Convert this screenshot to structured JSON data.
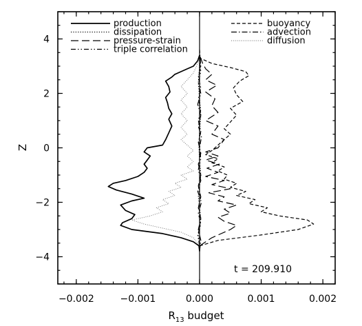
{
  "chart_data": {
    "type": "line",
    "title": "",
    "xlabel": "R13 budget",
    "xlabel_parts": {
      "main": "R",
      "sub": "13",
      "rest": " budget"
    },
    "ylabel": "Z",
    "xlim": [
      -0.0023,
      0.0022
    ],
    "ylim": [
      -5,
      5
    ],
    "xticks": [
      -0.002,
      -0.001,
      0.0,
      0.001,
      0.002
    ],
    "xtick_labels": [
      "−0.002",
      "−0.001",
      "0.000",
      "0.001",
      "0.002"
    ],
    "yticks": [
      -4,
      -2,
      0,
      2,
      4
    ],
    "ytick_labels": [
      "−4",
      "−2",
      "0",
      "2",
      "4"
    ],
    "grid": false,
    "legend_placement": "top",
    "annotation": "t = 209.910",
    "series": [
      {
        "name": "production",
        "dash": "solid",
        "points": [
          [
            0.0,
            -3.8
          ],
          [
            -1e-05,
            -3.6
          ],
          [
            -0.0001,
            -3.45
          ],
          [
            -0.0003,
            -3.3
          ],
          [
            -0.0006,
            -3.15
          ],
          [
            -0.0011,
            -3.0
          ],
          [
            -0.00128,
            -2.85
          ],
          [
            -0.00125,
            -2.75
          ],
          [
            -0.0011,
            -2.6
          ],
          [
            -0.00105,
            -2.45
          ],
          [
            -0.0012,
            -2.3
          ],
          [
            -0.00128,
            -2.1
          ],
          [
            -0.0011,
            -1.95
          ],
          [
            -0.0009,
            -1.85
          ],
          [
            -0.0011,
            -1.7
          ],
          [
            -0.00135,
            -1.55
          ],
          [
            -0.00148,
            -1.42
          ],
          [
            -0.0014,
            -1.3
          ],
          [
            -0.0012,
            -1.2
          ],
          [
            -0.001,
            -1.05
          ],
          [
            -0.0009,
            -0.9
          ],
          [
            -0.00085,
            -0.75
          ],
          [
            -0.0009,
            -0.6
          ],
          [
            -0.00085,
            -0.45
          ],
          [
            -0.0008,
            -0.3
          ],
          [
            -0.0009,
            -0.15
          ],
          [
            -0.00085,
            0.0
          ],
          [
            -0.0006,
            0.1
          ],
          [
            -0.00055,
            0.3
          ],
          [
            -0.0005,
            0.55
          ],
          [
            -0.00045,
            0.8
          ],
          [
            -0.0005,
            1.05
          ],
          [
            -0.00045,
            1.25
          ],
          [
            -0.0005,
            1.45
          ],
          [
            -0.00052,
            1.65
          ],
          [
            -0.00055,
            1.85
          ],
          [
            -0.00048,
            2.05
          ],
          [
            -0.0005,
            2.25
          ],
          [
            -0.00055,
            2.45
          ],
          [
            -0.00045,
            2.6
          ],
          [
            -0.0004,
            2.7
          ],
          [
            -0.0003,
            2.8
          ],
          [
            -0.0002,
            2.9
          ],
          [
            -0.0001,
            3.0
          ],
          [
            -3e-05,
            3.2
          ],
          [
            0.0,
            3.4
          ]
        ]
      },
      {
        "name": "dissipation",
        "dash": "dotted",
        "points": [
          [
            0.0,
            -3.5
          ],
          [
            -2e-05,
            -3.2
          ],
          [
            0.0,
            -3.0
          ],
          [
            2e-05,
            -2.6
          ],
          [
            0.0,
            -2.2
          ],
          [
            -2e-05,
            -1.8
          ],
          [
            0.0,
            -1.4
          ],
          [
            2e-05,
            -1.0
          ],
          [
            0.0,
            -0.5
          ],
          [
            -1e-05,
            0.0
          ],
          [
            0.0,
            0.6
          ],
          [
            2e-05,
            1.2
          ],
          [
            0.0,
            1.8
          ],
          [
            -2e-05,
            2.4
          ],
          [
            0.0,
            3.0
          ],
          [
            0.0,
            3.4
          ]
        ]
      },
      {
        "name": "pressure-strain",
        "dash": "long-dash",
        "points": [
          [
            0.0,
            -3.6
          ],
          [
            0.0002,
            -3.3
          ],
          [
            0.0005,
            -3.0
          ],
          [
            0.0006,
            -2.85
          ],
          [
            0.0004,
            -2.7
          ],
          [
            0.0003,
            -2.55
          ],
          [
            0.0005,
            -2.4
          ],
          [
            0.0004,
            -2.25
          ],
          [
            0.0006,
            -2.1
          ],
          [
            0.0003,
            -1.95
          ],
          [
            0.0004,
            -1.8
          ],
          [
            0.00015,
            -1.65
          ],
          [
            0.0005,
            -1.5
          ],
          [
            0.0002,
            -1.35
          ],
          [
            0.0004,
            -1.2
          ],
          [
            0.0001,
            -1.05
          ],
          [
            0.0003,
            -0.9
          ],
          [
            0.00012,
            -0.75
          ],
          [
            0.00032,
            -0.6
          ],
          [
            0.0001,
            -0.45
          ],
          [
            0.0003,
            -0.3
          ],
          [
            0.0001,
            -0.15
          ],
          [
            0.0003,
            0.0
          ],
          [
            0.0004,
            0.3
          ],
          [
            0.0002,
            0.5
          ],
          [
            0.0003,
            0.8
          ],
          [
            0.0001,
            1.0
          ],
          [
            0.0003,
            1.3
          ],
          [
            0.0002,
            1.55
          ],
          [
            0.00025,
            1.8
          ],
          [
            0.0001,
            2.05
          ],
          [
            0.00028,
            2.3
          ],
          [
            0.0001,
            2.5
          ],
          [
            0.0002,
            2.7
          ],
          [
            0.0001,
            2.9
          ],
          [
            5e-05,
            3.1
          ],
          [
            0.0,
            3.4
          ]
        ]
      },
      {
        "name": "triple correlation",
        "dash": "dash-dot-dot",
        "points": [
          [
            0.0,
            -3.6
          ],
          [
            -3e-05,
            -3.2
          ],
          [
            2e-05,
            -2.8
          ],
          [
            -2e-05,
            -2.4
          ],
          [
            3e-05,
            -2.0
          ],
          [
            -3e-05,
            -1.6
          ],
          [
            2e-05,
            -1.2
          ],
          [
            -2e-05,
            -0.8
          ],
          [
            2e-05,
            -0.4
          ],
          [
            0.0,
            0.0
          ],
          [
            3e-05,
            0.4
          ],
          [
            -2e-05,
            0.8
          ],
          [
            2e-05,
            1.2
          ],
          [
            -3e-05,
            1.6
          ],
          [
            2e-05,
            2.0
          ],
          [
            -2e-05,
            2.4
          ],
          [
            2e-05,
            2.8
          ],
          [
            0.0,
            3.2
          ],
          [
            0.0,
            3.4
          ]
        ]
      },
      {
        "name": "buoyancy",
        "dash": "short-dash",
        "points": [
          [
            0.0,
            -3.6
          ],
          [
            0.0003,
            -3.4
          ],
          [
            0.001,
            -3.2
          ],
          [
            0.0016,
            -3.0
          ],
          [
            0.00185,
            -2.8
          ],
          [
            0.00175,
            -2.65
          ],
          [
            0.0013,
            -2.5
          ],
          [
            0.001,
            -2.35
          ],
          [
            0.0011,
            -2.2
          ],
          [
            0.0008,
            -2.05
          ],
          [
            0.0009,
            -1.9
          ],
          [
            0.0006,
            -1.75
          ],
          [
            0.00075,
            -1.6
          ],
          [
            0.0005,
            -1.45
          ],
          [
            0.0006,
            -1.3
          ],
          [
            0.0004,
            -1.15
          ],
          [
            0.00045,
            -1.0
          ],
          [
            0.0003,
            -0.85
          ],
          [
            0.0004,
            -0.7
          ],
          [
            0.0002,
            -0.55
          ],
          [
            0.0003,
            -0.4
          ],
          [
            0.0001,
            -0.25
          ],
          [
            0.0002,
            -0.1
          ],
          [
            0.0003,
            0.1
          ],
          [
            0.0004,
            0.3
          ],
          [
            0.0005,
            0.5
          ],
          [
            0.0004,
            0.7
          ],
          [
            0.0005,
            0.95
          ],
          [
            0.0006,
            1.2
          ],
          [
            0.0005,
            1.45
          ],
          [
            0.0007,
            1.7
          ],
          [
            0.0006,
            1.95
          ],
          [
            0.00055,
            2.2
          ],
          [
            0.00065,
            2.45
          ],
          [
            0.0008,
            2.65
          ],
          [
            0.00075,
            2.8
          ],
          [
            0.0005,
            2.95
          ],
          [
            0.0002,
            3.1
          ],
          [
            0.0,
            3.3
          ]
        ]
      },
      {
        "name": "advection",
        "dash": "dash-dot",
        "points": [
          [
            0.0,
            -3.8
          ],
          [
            2e-05,
            -3.4
          ],
          [
            -2e-05,
            -3.0
          ],
          [
            2e-05,
            -2.6
          ],
          [
            -2e-05,
            -2.2
          ],
          [
            2e-05,
            -1.8
          ],
          [
            -2e-05,
            -1.4
          ],
          [
            2e-05,
            -1.0
          ],
          [
            -2e-05,
            -0.6
          ],
          [
            2e-05,
            -0.2
          ],
          [
            -2e-05,
            0.2
          ],
          [
            2e-05,
            0.6
          ],
          [
            -2e-05,
            1.0
          ],
          [
            2e-05,
            1.4
          ],
          [
            -2e-05,
            1.8
          ],
          [
            2e-05,
            2.2
          ],
          [
            -2e-05,
            2.6
          ],
          [
            2e-05,
            3.0
          ],
          [
            0.0,
            3.6
          ]
        ]
      },
      {
        "name": "diffusion",
        "dash": "fine-dot",
        "points": [
          [
            0.0,
            -3.6
          ],
          [
            -0.0001,
            -3.3
          ],
          [
            -0.0003,
            -3.1
          ],
          [
            -0.0006,
            -2.95
          ],
          [
            -0.0009,
            -2.8
          ],
          [
            -0.0011,
            -2.65
          ],
          [
            -0.0008,
            -2.5
          ],
          [
            -0.0006,
            -2.35
          ],
          [
            -0.0007,
            -2.2
          ],
          [
            -0.0005,
            -2.05
          ],
          [
            -0.0006,
            -1.9
          ],
          [
            -0.0004,
            -1.75
          ],
          [
            -0.0005,
            -1.6
          ],
          [
            -0.0003,
            -1.45
          ],
          [
            -0.0004,
            -1.3
          ],
          [
            -0.0002,
            -1.15
          ],
          [
            -0.0003,
            -1.0
          ],
          [
            -0.0001,
            -0.85
          ],
          [
            -0.0002,
            -0.7
          ],
          [
            -0.0001,
            -0.5
          ],
          [
            -0.0002,
            -0.3
          ],
          [
            -0.0001,
            -0.1
          ],
          [
            -0.0002,
            0.1
          ],
          [
            -0.0003,
            0.3
          ],
          [
            -0.0002,
            0.5
          ],
          [
            -0.0003,
            0.75
          ],
          [
            -0.0002,
            1.0
          ],
          [
            -0.0003,
            1.25
          ],
          [
            -0.0002,
            1.5
          ],
          [
            -0.0003,
            1.75
          ],
          [
            -0.0002,
            2.0
          ],
          [
            -0.0003,
            2.25
          ],
          [
            -0.0002,
            2.5
          ],
          [
            -0.0001,
            2.75
          ],
          [
            -5e-05,
            3.0
          ],
          [
            0.0,
            3.3
          ]
        ]
      }
    ]
  }
}
